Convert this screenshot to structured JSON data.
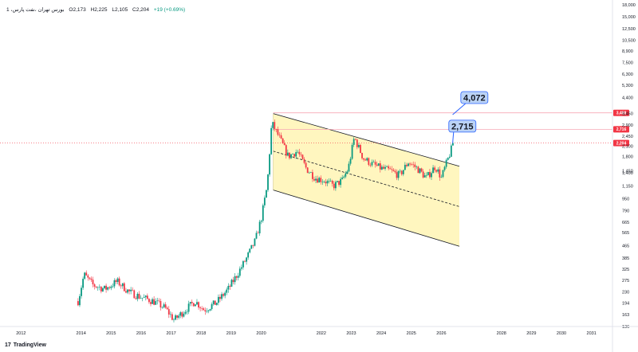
{
  "header": {
    "symbol": "1 ،بورس تهران ،نفت پارس",
    "open": "O2,173",
    "high": "H2,225",
    "low": "L2,105",
    "close": "C2,204",
    "change": "+19 (+0.69%)"
  },
  "brand": {
    "name": "TradingView",
    "mark": "17"
  },
  "colors": {
    "candle_up": "#089981",
    "candle_down": "#f23645",
    "channel_fill": "#fff6bf",
    "channel_line": "#131722",
    "hline": "#f7a9b6",
    "tag_red": "#f23645",
    "callout_fill": "#bbd3f6",
    "callout_stroke": "#2962ff"
  },
  "chart_data": {
    "type": "candlestick",
    "y_scale": "log",
    "ylim": [
      136,
      18000
    ],
    "xlim": [
      2011.3,
      2031.7
    ],
    "y_ticks": [
      "18,000",
      "15,000",
      "12,500",
      "10,500",
      "8,900",
      "7,500",
      "6,300",
      "5,300",
      "4,400",
      "3,450",
      "2,900",
      "2,450",
      "2,100",
      "1,800",
      "1,450",
      "1,400",
      "1,150",
      "950",
      "790",
      "665",
      "565",
      "465",
      "385",
      "325",
      "275",
      "230",
      "194",
      "163",
      "136"
    ],
    "x_ticks": [
      "2012",
      "2014",
      "2015",
      "2016",
      "2017",
      "2018",
      "2019",
      "2020",
      "2022",
      "2023",
      "2024",
      "2025",
      "2026",
      "2028",
      "2029",
      "2030",
      "2031"
    ],
    "price_path": [
      [
        2013.9,
        200
      ],
      [
        2014.1,
        300
      ],
      [
        2014.4,
        255
      ],
      [
        2014.8,
        240
      ],
      [
        2015.2,
        270
      ],
      [
        2015.6,
        230
      ],
      [
        2016.0,
        212
      ],
      [
        2016.4,
        200
      ],
      [
        2016.8,
        180
      ],
      [
        2017.1,
        150
      ],
      [
        2017.4,
        170
      ],
      [
        2017.8,
        200
      ],
      [
        2018.1,
        175
      ],
      [
        2018.5,
        195
      ],
      [
        2018.9,
        240
      ],
      [
        2019.2,
        300
      ],
      [
        2019.5,
        380
      ],
      [
        2019.8,
        500
      ],
      [
        2020.0,
        700
      ],
      [
        2020.2,
        1150
      ],
      [
        2020.35,
        3000
      ],
      [
        2020.6,
        2400
      ],
      [
        2020.9,
        1800
      ],
      [
        2021.2,
        1950
      ],
      [
        2021.5,
        1500
      ],
      [
        2021.8,
        1300
      ],
      [
        2022.1,
        1250
      ],
      [
        2022.4,
        1150
      ],
      [
        2022.7,
        1250
      ],
      [
        2022.9,
        1500
      ],
      [
        2023.1,
        2400
      ],
      [
        2023.4,
        1750
      ],
      [
        2023.7,
        1600
      ],
      [
        2024.0,
        1500
      ],
      [
        2024.3,
        1450
      ],
      [
        2024.6,
        1350
      ],
      [
        2024.9,
        1650
      ],
      [
        2025.2,
        1500
      ],
      [
        2025.5,
        1300
      ],
      [
        2025.8,
        1550
      ],
      [
        2026.0,
        1300
      ],
      [
        2026.25,
        1800
      ],
      [
        2026.4,
        2204
      ]
    ],
    "last_close": 2204,
    "channel": {
      "upper": [
        [
          2020.4,
          3450
        ],
        [
          2026.6,
          1550
        ]
      ],
      "lower": [
        [
          2020.4,
          1080
        ],
        [
          2026.6,
          460
        ]
      ],
      "mid": [
        [
          2020.4,
          1950
        ],
        [
          2026.6,
          840
        ]
      ]
    },
    "horizontal_levels": [
      {
        "value": 3488,
        "label": "3,488"
      },
      {
        "value": 2716,
        "label": "2,716"
      }
    ],
    "current_price_label": "2,204",
    "annotations": [
      {
        "text": "4,072",
        "x": 2027.1,
        "y": 4400
      },
      {
        "text": "2,715",
        "x": 2026.7,
        "y": 2850
      }
    ]
  }
}
